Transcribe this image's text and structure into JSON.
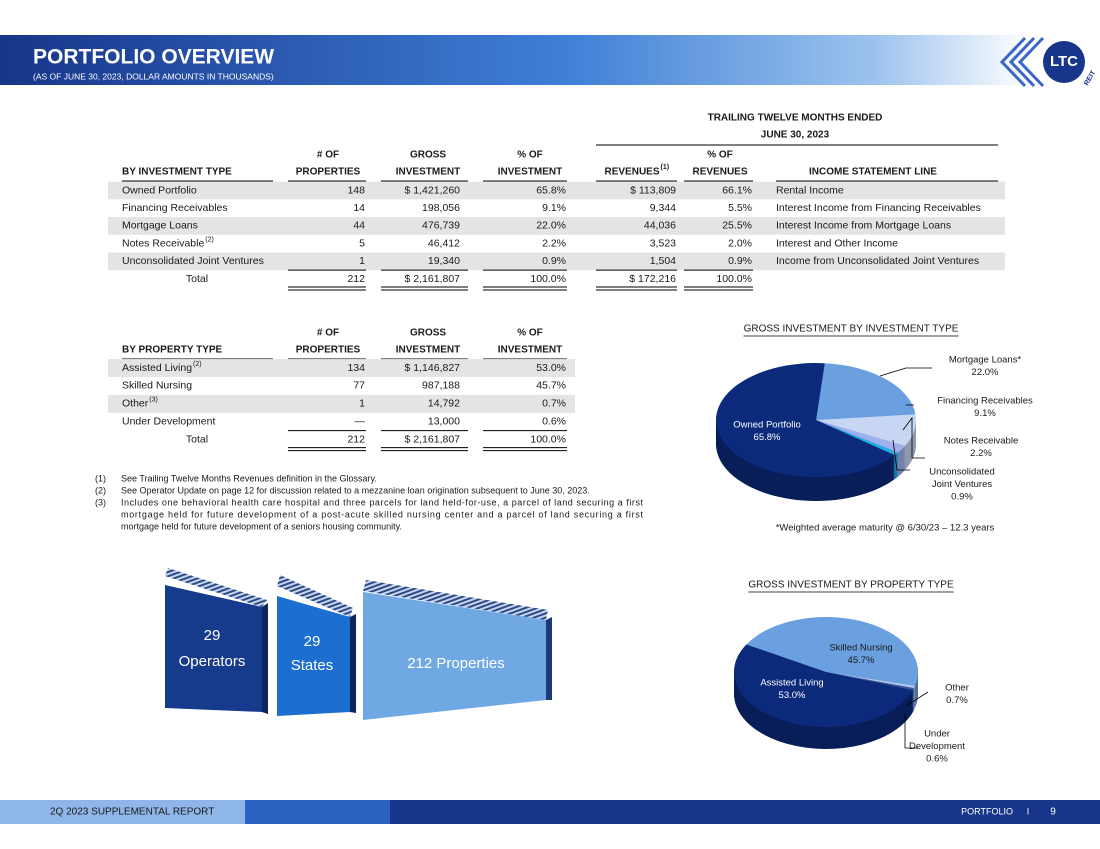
{
  "header": {
    "title": "PORTFOLIO OVERVIEW",
    "subtitle": "(AS OF JUNE 30, 2023, DOLLAR AMOUNTS IN THOUSANDS)",
    "logo": "LTC",
    "logo_sub": "REIT"
  },
  "table1": {
    "super_header": [
      "TRAILING TWELVE MONTHS ENDED",
      "JUNE 30, 2023"
    ],
    "header": [
      [
        "BY INVESTMENT TYPE"
      ],
      [
        "# OF",
        "PROPERTIES"
      ],
      [
        "GROSS",
        "INVESTMENT"
      ],
      [
        "% OF",
        "INVESTMENT"
      ],
      [
        "REVENUES"
      ],
      [
        "% OF",
        "REVENUES"
      ],
      [
        "INCOME STATEMENT LINE"
      ]
    ],
    "revenue_note": "(1)",
    "rows": [
      {
        "cells": [
          "Owned Portfolio",
          "148",
          "$ 1,421,260",
          "65.8%",
          "$ 113,809",
          "66.1%",
          "Rental Income"
        ]
      },
      {
        "cells": [
          "Financing Receivables",
          "14",
          "198,056",
          "9.1%",
          "9,344",
          "5.5%",
          "Interest Income from Financing Receivables"
        ]
      },
      {
        "cells": [
          "Mortgage Loans",
          "44",
          "476,739",
          "22.0%",
          "44,036",
          "25.5%",
          "Interest Income from Mortgage Loans"
        ]
      },
      {
        "cells": [
          "Notes Receivable",
          "5",
          "46,412",
          "2.2%",
          "3,523",
          "2.0%",
          "Interest and Other Income"
        ],
        "note": "(2)"
      },
      {
        "cells": [
          "Unconsolidated Joint Ventures",
          "1",
          "19,340",
          "0.9%",
          "1,504",
          "0.9%",
          "Income from Unconsolidated Joint Ventures"
        ]
      }
    ],
    "total": [
      "Total",
      "212",
      "$ 2,161,807",
      "100.0%",
      "$ 172,216",
      "100.0%"
    ]
  },
  "table2": {
    "header": [
      [
        "BY PROPERTY TYPE"
      ],
      [
        "# OF",
        "PROPERTIES"
      ],
      [
        "GROSS",
        "INVESTMENT"
      ],
      [
        "% OF",
        "INVESTMENT"
      ]
    ],
    "rows": [
      {
        "cells": [
          "Assisted Living",
          "134",
          "$ 1,146,827",
          "53.0%"
        ],
        "note": "(2)"
      },
      {
        "cells": [
          "Skilled Nursing",
          "77",
          "987,188",
          "45.7%"
        ]
      },
      {
        "cells": [
          "Other",
          "1",
          "14,792",
          "0.7%"
        ],
        "note": "(3)"
      },
      {
        "cells": [
          "Under Development",
          "—",
          "13,000",
          "0.6%"
        ]
      }
    ],
    "total": [
      "Total",
      "212",
      "$ 2,161,807",
      "100.0%"
    ]
  },
  "footnotes": [
    {
      "num": "(1)",
      "lines": [
        "See Trailing Twelve Months Revenues definition in the Glossary."
      ]
    },
    {
      "num": "(2)",
      "lines": [
        "See Operator Update on page 12 for discussion related to a mezzanine loan origination subsequent to June 30, 2023."
      ]
    },
    {
      "num": "(3)",
      "lines": [
        "Includes one behavioral health care hospital and three parcels for land held-for-use, a parcel of land securing a first",
        "mortgage held for future development of a post-acute skilled nursing center and a parcel of land securing a first",
        "mortgage held for future development of a seniors housing community."
      ]
    }
  ],
  "pie1": {
    "title": "GROSS INVESTMENT BY INVESTMENT TYPE",
    "slices": [
      {
        "label": [
          "Mortgage Loans*"
        ],
        "value": 22.0,
        "value_label": "22.0%",
        "color": "#6a9fe0"
      },
      {
        "label": [
          "Financing Receivables"
        ],
        "value": 9.1,
        "value_label": "9.1%",
        "color": "#c7d6f2"
      },
      {
        "label": [
          "Notes Receivable"
        ],
        "value": 2.2,
        "value_label": "2.2%",
        "color": "#9fb0ee"
      },
      {
        "label": [
          "Unconsolidated",
          "Joint Ventures"
        ],
        "value": 0.9,
        "value_label": "0.9%",
        "color": "#22aee0"
      },
      {
        "label": [
          "Owned Portfolio"
        ],
        "value": 65.8,
        "value_label": "65.8%",
        "color": "#0c2a7c"
      }
    ],
    "note": "*Weighted average maturity @ 6/30/23 – 12.3 years"
  },
  "pie2": {
    "title": "GROSS INVESTMENT BY PROPERTY TYPE",
    "slices": [
      {
        "label": [
          "Skilled Nursing"
        ],
        "value": 45.7,
        "value_label": "45.7%",
        "color": "#6a9fe0"
      },
      {
        "label": [
          "Other"
        ],
        "value": 0.7,
        "value_label": "0.7%",
        "color": "#b3c6f0"
      },
      {
        "label": [
          "Under",
          "Development"
        ],
        "value": 0.6,
        "value_label": "0.6%",
        "color": "#3a5a9a"
      },
      {
        "label": [
          "Assisted Living"
        ],
        "value": 53.0,
        "value_label": "53.0%",
        "color": "#0c2a7c"
      }
    ]
  },
  "banners": [
    {
      "lines": [
        "29",
        "Operators"
      ]
    },
    {
      "lines": [
        "29",
        "States"
      ]
    },
    {
      "lines": [
        "212 Properties"
      ]
    }
  ],
  "footer": {
    "report": "2Q 2023 SUPPLEMENTAL REPORT",
    "section": "PORTFOLIO",
    "separator": "I",
    "page": "9"
  }
}
